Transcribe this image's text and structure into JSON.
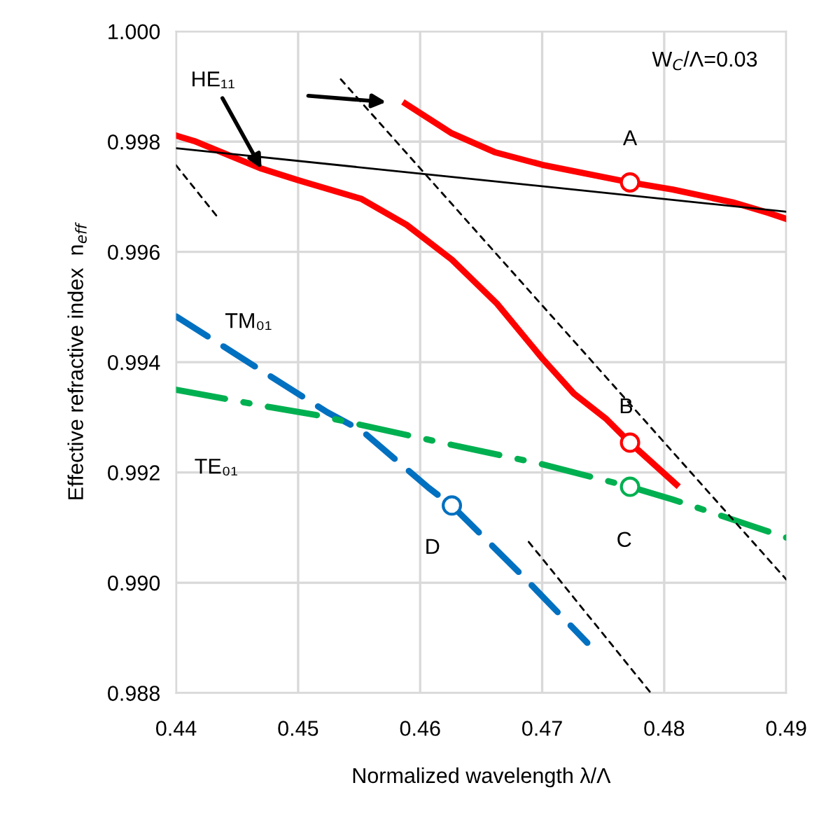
{
  "chart_data": {
    "type": "line",
    "xlabel": "Normalized wavelength λ/Λ",
    "ylabel": "Effective refractive index  n$_{eff}$",
    "xlim": [
      0.44,
      0.49
    ],
    "xticks": [
      0.44,
      0.45,
      0.46,
      0.47,
      0.48,
      0.49
    ],
    "ylim": [
      0.988,
      1.0
    ],
    "yticks": [
      {
        "value": 0.988,
        "label": "0.988"
      },
      {
        "value": 0.99,
        "label": "0.990"
      },
      {
        "value": 0.992,
        "label": "0.992"
      },
      {
        "value": 0.994,
        "label": "0.994"
      },
      {
        "value": 0.996,
        "label": "0.996"
      },
      {
        "value": 0.998,
        "label": "0.998"
      },
      {
        "value": 1.0,
        "label": "1.000"
      }
    ],
    "grid": true,
    "marker": "none",
    "series": [
      {
        "color": "#ff0000",
        "line_style": "solid",
        "x": [
          0.44,
          0.4415,
          0.447,
          0.45,
          0.4552,
          0.4589,
          0.4626,
          0.4663,
          0.47,
          0.4726,
          0.4752,
          0.4772,
          0.481
        ],
        "values": [
          0.99811,
          0.99801,
          0.99751,
          0.9973,
          0.99696,
          0.99649,
          0.99586,
          0.99506,
          0.99407,
          0.99343,
          0.99298,
          0.99254,
          0.99178
        ]
      },
      {
        "color": "#ff0000",
        "line_style": "solid",
        "x": [
          0.4588,
          0.4626,
          0.4661,
          0.47,
          0.4772,
          0.4807,
          0.4856,
          0.4885,
          0.49
        ],
        "values": [
          0.99869,
          0.99815,
          0.99781,
          0.99758,
          0.99726,
          0.99713,
          0.9969,
          0.99671,
          0.9966
        ]
      },
      {
        "color": "#0070c0",
        "line_style": "dashed",
        "x": [
          0.44,
          0.4524,
          0.4552,
          0.4607,
          0.4626,
          0.4685,
          0.4737
        ],
        "values": [
          0.99483,
          0.99309,
          0.99276,
          0.99172,
          0.9914,
          0.9901,
          0.98891
        ]
      },
      {
        "color": "#00b050",
        "line_style": "dashdot",
        "x": [
          0.44,
          0.4478,
          0.4515,
          0.4626,
          0.4698,
          0.4772,
          0.4807,
          0.49
        ],
        "values": [
          0.9935,
          0.99318,
          0.99304,
          0.9925,
          0.99216,
          0.99174,
          0.99151,
          0.99082
        ]
      },
      {
        "color": "#000000",
        "line_style": "solid",
        "x": [
          0.44,
          0.49
        ],
        "values": [
          0.99788,
          0.99673
        ]
      },
      {
        "color": "#000000",
        "line_style": "dashed",
        "x": [
          0.44,
          0.4433
        ],
        "values": [
          0.99757,
          0.99666
        ]
      },
      {
        "color": "#000000",
        "line_style": "dashed",
        "x": [
          0.4535,
          0.49
        ],
        "values": [
          0.99913,
          0.99006
        ]
      },
      {
        "color": "#000000",
        "line_style": "dashed",
        "x": [
          0.4689,
          0.4789
        ],
        "values": [
          0.99074,
          0.988
        ]
      },
      {
        "type": "scatter",
        "marker": "circle",
        "color": "#ff0000",
        "x": [
          0.4772,
          0.4772
        ],
        "values": [
          0.99726,
          0.99254
        ]
      },
      {
        "type": "scatter",
        "marker": "circle",
        "color": "#00b050",
        "x": [
          0.4772
        ],
        "values": [
          0.99174
        ]
      },
      {
        "type": "scatter",
        "marker": "circle",
        "color": "#0070c0",
        "x": [
          0.4626
        ],
        "values": [
          0.9914
        ]
      }
    ],
    "annotations": [
      {
        "text": "HE₁₁",
        "x": 0.447,
        "y": 0.99751
      },
      {
        "text": "A",
        "x": 0.4772,
        "y": 0.99726
      },
      {
        "text": "B",
        "x": 0.4772,
        "y": 0.99254
      },
      {
        "text": "C",
        "x": 0.4772,
        "y": 0.99174
      },
      {
        "text": "D",
        "x": 0.4626,
        "y": 0.9914
      },
      "TM₀₁",
      "TE₀₁",
      "W$_{C}$/Λ=0.03"
    ]
  }
}
